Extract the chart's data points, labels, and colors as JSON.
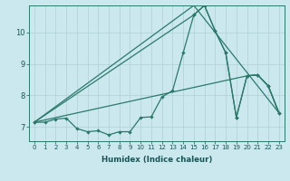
{
  "xlabel": "Humidex (Indice chaleur)",
  "bg_color": "#cbe8ef",
  "line_color": "#2a7a6a",
  "grid_color": "#b0d0d5",
  "xlim": [
    -0.5,
    23.5
  ],
  "ylim": [
    6.55,
    10.85
  ],
  "yticks": [
    7,
    8,
    9,
    10
  ],
  "xticks": [
    0,
    1,
    2,
    3,
    4,
    5,
    6,
    7,
    8,
    9,
    10,
    11,
    12,
    13,
    14,
    15,
    16,
    17,
    18,
    19,
    20,
    21,
    22,
    23
  ],
  "main_x": [
    0,
    1,
    2,
    3,
    4,
    5,
    6,
    7,
    8,
    9,
    10,
    11,
    12,
    13,
    14,
    15,
    16,
    17,
    18,
    19,
    20,
    21,
    22,
    23
  ],
  "main_y": [
    7.15,
    7.15,
    7.25,
    7.28,
    6.95,
    6.85,
    6.88,
    6.75,
    6.85,
    6.85,
    7.3,
    7.32,
    7.95,
    8.15,
    9.35,
    10.55,
    10.85,
    10.05,
    9.35,
    7.3,
    8.62,
    8.65,
    8.3,
    7.45
  ],
  "line2_x": [
    0,
    15,
    23
  ],
  "line2_y": [
    7.15,
    10.85,
    7.45
  ],
  "line3_x": [
    0,
    20,
    21,
    22,
    23
  ],
  "line3_y": [
    7.15,
    8.62,
    8.65,
    8.3,
    7.45
  ],
  "line4_x": [
    0,
    15,
    16,
    17,
    18,
    19,
    20,
    21,
    22,
    23
  ],
  "line4_y": [
    7.15,
    10.55,
    10.85,
    10.05,
    9.35,
    7.3,
    8.62,
    8.65,
    8.3,
    7.45
  ]
}
